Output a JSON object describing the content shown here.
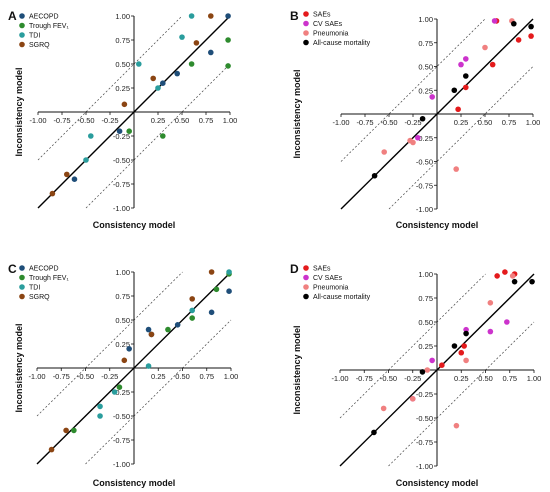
{
  "chart_data": [
    {
      "panel": "A",
      "type": "scatter",
      "xlabel": "Consistency model",
      "ylabel": "Inconsistency model",
      "xlim": [
        -1.0,
        1.0
      ],
      "ylim": [
        -1.0,
        1.0
      ],
      "xticks": [
        "-1.00",
        "-0.75",
        "-0.50",
        "-0.25",
        "0.25",
        "0.50",
        "0.75",
        "1.00"
      ],
      "yticks": [
        "-1.00",
        "-0.75",
        "-0.50",
        "-0.25",
        "0.25",
        "0.50",
        "0.75",
        "1.00"
      ],
      "legend_position": "top-left",
      "series": [
        {
          "name": "AECOPD",
          "color": "#1f4e79",
          "points": [
            [
              -0.62,
              -0.7
            ],
            [
              -0.15,
              -0.2
            ],
            [
              0.45,
              0.4
            ],
            [
              0.8,
              0.62
            ],
            [
              0.98,
              1.0
            ],
            [
              0.3,
              0.3
            ]
          ]
        },
        {
          "name": "Trough FEV₁",
          "color": "#2e8b2e",
          "points": [
            [
              -0.05,
              -0.2
            ],
            [
              0.3,
              -0.25
            ],
            [
              0.6,
              0.5
            ],
            [
              0.98,
              0.75
            ],
            [
              0.98,
              0.48
            ]
          ]
        },
        {
          "name": "TDI",
          "color": "#2a9d9d",
          "points": [
            [
              -0.5,
              -0.5
            ],
            [
              -0.45,
              -0.25
            ],
            [
              0.05,
              0.5
            ],
            [
              0.5,
              0.78
            ],
            [
              0.6,
              1.0
            ],
            [
              0.25,
              0.25
            ]
          ]
        },
        {
          "name": "SGRQ",
          "color": "#8b4513",
          "points": [
            [
              -0.85,
              -0.85
            ],
            [
              -0.7,
              -0.65
            ],
            [
              -0.1,
              0.08
            ],
            [
              0.2,
              0.35
            ],
            [
              0.65,
              0.72
            ],
            [
              0.8,
              1.0
            ]
          ]
        }
      ]
    },
    {
      "panel": "B",
      "type": "scatter",
      "xlabel": "Consistency model",
      "ylabel": "Inconsistency model",
      "xlim": [
        -1.0,
        1.0
      ],
      "ylim": [
        -1.0,
        1.0
      ],
      "xticks": [
        "-1.00",
        "-0.75",
        "-0.50",
        "-0.25",
        "0.25",
        "0.50",
        "0.75",
        "1.00"
      ],
      "yticks": [
        "-1.00",
        "-0.75",
        "-0.50",
        "-0.25",
        "0.25",
        "0.50",
        "0.75",
        "1.00"
      ],
      "legend_position": "top-left",
      "series": [
        {
          "name": "SAEs",
          "color": "#e41a1c",
          "points": [
            [
              0.22,
              0.05
            ],
            [
              0.3,
              0.28
            ],
            [
              0.58,
              0.52
            ],
            [
              0.62,
              0.98
            ],
            [
              0.85,
              0.78
            ],
            [
              0.98,
              0.82
            ]
          ]
        },
        {
          "name": "CV SAEs",
          "color": "#cc33cc",
          "points": [
            [
              -0.05,
              0.18
            ],
            [
              -0.2,
              -0.25
            ],
            [
              0.25,
              0.52
            ],
            [
              0.3,
              0.58
            ],
            [
              0.6,
              0.98
            ]
          ]
        },
        {
          "name": "Pneumonia",
          "color": "#f08080",
          "points": [
            [
              -0.55,
              -0.4
            ],
            [
              -0.28,
              -0.28
            ],
            [
              -0.25,
              -0.3
            ],
            [
              0.2,
              -0.58
            ],
            [
              0.5,
              0.7
            ],
            [
              0.78,
              0.98
            ]
          ]
        },
        {
          "name": "All-cause mortality",
          "color": "#000000",
          "points": [
            [
              -0.65,
              -0.65
            ],
            [
              -0.15,
              -0.05
            ],
            [
              0.18,
              0.25
            ],
            [
              0.3,
              0.4
            ],
            [
              0.8,
              0.95
            ],
            [
              0.98,
              0.92
            ]
          ]
        }
      ]
    },
    {
      "panel": "C",
      "type": "scatter",
      "xlabel": "Consistency model",
      "ylabel": "Inconsistency model",
      "xlim": [
        -1.0,
        1.0
      ],
      "ylim": [
        -1.0,
        1.0
      ],
      "xticks": [
        "-1.00",
        "-0.75",
        "-0.50",
        "-0.25",
        "0.25",
        "0.50",
        "0.75",
        "1.00"
      ],
      "yticks": [
        "-1.00",
        "-0.75",
        "-0.50",
        "-0.25",
        "0.25",
        "0.50",
        "0.75",
        "1.00"
      ],
      "legend_position": "top-left",
      "series": [
        {
          "name": "AECOPD",
          "color": "#1f4e79",
          "points": [
            [
              -0.05,
              0.2
            ],
            [
              0.15,
              0.4
            ],
            [
              0.18,
              0.35
            ],
            [
              0.45,
              0.45
            ],
            [
              0.8,
              0.58
            ],
            [
              0.98,
              0.8
            ]
          ]
        },
        {
          "name": "Trough FEV₁",
          "color": "#2e8b2e",
          "points": [
            [
              -0.62,
              -0.65
            ],
            [
              -0.15,
              -0.2
            ],
            [
              0.35,
              0.4
            ],
            [
              0.6,
              0.52
            ],
            [
              0.85,
              0.82
            ],
            [
              0.98,
              0.98
            ]
          ]
        },
        {
          "name": "TDI",
          "color": "#2a9d9d",
          "points": [
            [
              -0.35,
              -0.4
            ],
            [
              -0.35,
              -0.5
            ],
            [
              -0.2,
              -0.25
            ],
            [
              0.15,
              0.02
            ],
            [
              0.6,
              0.6
            ],
            [
              0.98,
              1.0
            ]
          ]
        },
        {
          "name": "SGRQ",
          "color": "#8b4513",
          "points": [
            [
              -0.85,
              -0.85
            ],
            [
              -0.7,
              -0.65
            ],
            [
              -0.1,
              0.08
            ],
            [
              0.18,
              0.35
            ],
            [
              0.6,
              0.72
            ],
            [
              0.8,
              1.0
            ]
          ]
        }
      ]
    },
    {
      "panel": "D",
      "type": "scatter",
      "xlabel": "Consistency model",
      "ylabel": "Inconsistency model",
      "xlim": [
        -1.0,
        1.0
      ],
      "ylim": [
        -1.0,
        1.0
      ],
      "xticks": [
        "-1.00",
        "-0.75",
        "-0.50",
        "-0.25",
        "0.25",
        "0.50",
        "0.75",
        "1.00"
      ],
      "yticks": [
        "-1.00",
        "-0.75",
        "-0.50",
        "-0.25",
        "0.25",
        "0.50",
        "0.75",
        "1.00"
      ],
      "legend_position": "top-left",
      "series": [
        {
          "name": "SAEs",
          "color": "#e41a1c",
          "points": [
            [
              0.05,
              0.05
            ],
            [
              0.25,
              0.18
            ],
            [
              0.28,
              0.25
            ],
            [
              0.62,
              0.98
            ],
            [
              0.7,
              1.02
            ],
            [
              0.8,
              1.0
            ]
          ]
        },
        {
          "name": "CV SAEs",
          "color": "#cc33cc",
          "points": [
            [
              -0.25,
              -0.3
            ],
            [
              -0.05,
              0.1
            ],
            [
              0.3,
              0.42
            ],
            [
              0.55,
              0.4
            ],
            [
              0.72,
              0.5
            ]
          ]
        },
        {
          "name": "Pneumonia",
          "color": "#f08080",
          "points": [
            [
              -0.55,
              -0.4
            ],
            [
              -0.25,
              -0.3
            ],
            [
              -0.1,
              0.0
            ],
            [
              0.2,
              -0.58
            ],
            [
              0.3,
              0.1
            ],
            [
              0.55,
              0.7
            ],
            [
              0.78,
              0.98
            ]
          ]
        },
        {
          "name": "All-cause mortality",
          "color": "#000000",
          "points": [
            [
              -0.65,
              -0.65
            ],
            [
              -0.15,
              -0.02
            ],
            [
              0.18,
              0.25
            ],
            [
              0.3,
              0.38
            ],
            [
              0.8,
              0.92
            ],
            [
              0.98,
              0.92
            ]
          ]
        }
      ]
    }
  ]
}
